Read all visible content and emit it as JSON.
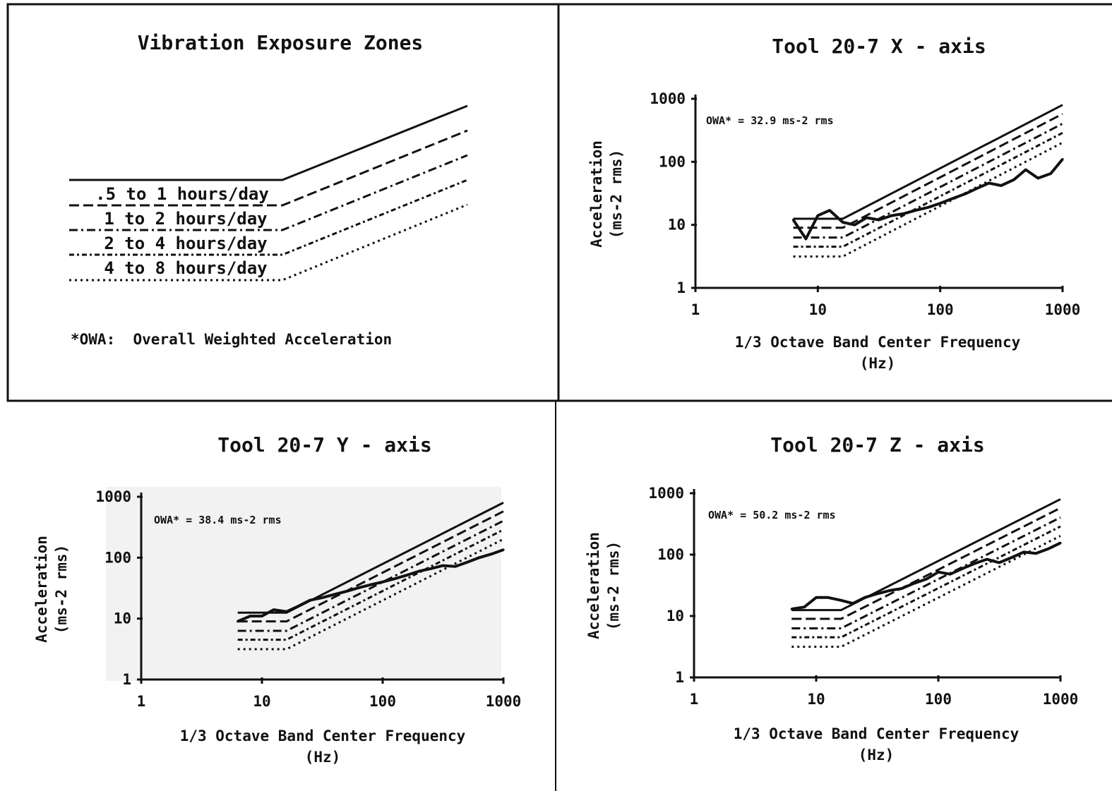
{
  "legend_panel": {
    "title": "Vibration Exposure Zones",
    "zones": [
      {
        "label": ".5 to 1 hours/day",
        "dash": "dashed"
      },
      {
        "label": "1 to 2 hours/day",
        "dash": "dashdot"
      },
      {
        "label": "2 to 4 hours/day",
        "dash": "dashdot-fine"
      },
      {
        "label": "4 to 8 hours/day",
        "dash": "dotted"
      }
    ],
    "note": "*OWA:  Overall Weighted Acceleration"
  },
  "chart_data": [
    {
      "type": "line",
      "title": "Tool 20-7 X - axis",
      "xlabel": "1/3 Octave Band Center Frequency",
      "xlabel2": "(Hz)",
      "ylabel": "Acceleration",
      "ylabel2": "(ms-2 rms)",
      "owa": "OWA* = 32.9 ms-2 rms",
      "x_scale": "log",
      "y_scale": "log",
      "xlim": [
        1,
        1000
      ],
      "ylim": [
        1,
        1000
      ],
      "x_ticks": [
        "1",
        "10",
        "100",
        "1000"
      ],
      "y_ticks": [
        "1",
        "10",
        "100",
        "1000"
      ],
      "zone_levels": [
        12.5,
        9,
        6.3,
        4.5,
        3.15
      ],
      "zone_knee_hz": 16,
      "zone_end_value": 800,
      "measured": {
        "x": [
          6.3,
          8,
          10,
          12.5,
          16,
          20,
          25,
          31.5,
          40,
          50,
          63,
          80,
          100,
          125,
          160,
          200,
          250,
          315,
          400,
          500,
          630,
          800,
          1000
        ],
        "y": [
          12,
          6,
          14,
          17,
          11,
          10,
          13,
          12,
          14,
          15,
          17,
          19,
          22,
          26,
          31,
          38,
          46,
          42,
          52,
          75,
          55,
          65,
          110
        ]
      }
    },
    {
      "type": "line",
      "title": "Tool 20-7 Y - axis",
      "xlabel": "1/3 Octave Band Center Frequency",
      "xlabel2": "(Hz)",
      "ylabel": "Acceleration",
      "ylabel2": "(ms-2 rms)",
      "owa": "OWA* = 38.4 ms-2 rms",
      "x_scale": "log",
      "y_scale": "log",
      "xlim": [
        1,
        1000
      ],
      "ylim": [
        1,
        1000
      ],
      "x_ticks": [
        "1",
        "10",
        "100",
        "1000"
      ],
      "y_ticks": [
        "1",
        "10",
        "100",
        "1000"
      ],
      "zone_levels": [
        12.5,
        9,
        6.3,
        4.5,
        3.15
      ],
      "zone_knee_hz": 16,
      "zone_end_value": 800,
      "measured": {
        "x": [
          6.3,
          8,
          10,
          12.5,
          16,
          20,
          25,
          31.5,
          40,
          50,
          63,
          80,
          100,
          125,
          160,
          200,
          250,
          315,
          400,
          500,
          630,
          800,
          1000
        ],
        "y": [
          9,
          11,
          11,
          14,
          13,
          16,
          20,
          22,
          25,
          28,
          32,
          36,
          40,
          45,
          52,
          60,
          66,
          74,
          72,
          84,
          100,
          115,
          135
        ]
      }
    },
    {
      "type": "line",
      "title": "Tool 20-7 Z - axis",
      "xlabel": "1/3 Octave Band Center Frequency",
      "xlabel2": "(Hz)",
      "ylabel": "Acceleration",
      "ylabel2": "(ms-2 rms)",
      "owa": "OWA* = 50.2 ms-2 rms",
      "x_scale": "log",
      "y_scale": "log",
      "xlim": [
        1,
        1000
      ],
      "ylim": [
        1,
        1000
      ],
      "x_ticks": [
        "1",
        "10",
        "100",
        "1000"
      ],
      "y_ticks": [
        "1",
        "10",
        "100",
        "1000"
      ],
      "zone_levels": [
        12.5,
        9,
        6.3,
        4.5,
        3.15
      ],
      "zone_knee_hz": 16,
      "zone_end_value": 800,
      "measured": {
        "x": [
          6.3,
          8,
          10,
          12.5,
          16,
          20,
          25,
          31.5,
          40,
          50,
          63,
          80,
          100,
          125,
          160,
          200,
          250,
          315,
          400,
          500,
          630,
          800,
          1000
        ],
        "y": [
          13,
          14,
          20,
          20,
          18,
          16,
          20,
          23,
          26,
          28,
          34,
          40,
          52,
          48,
          60,
          72,
          84,
          74,
          90,
          110,
          105,
          125,
          155
        ]
      }
    }
  ]
}
